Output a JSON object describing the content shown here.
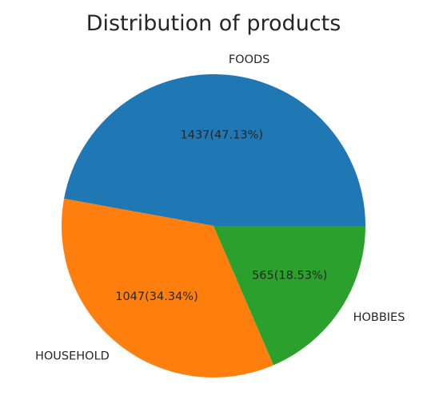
{
  "chart_data": {
    "type": "pie",
    "title": "Distribution of products",
    "categories": [
      "FOODS",
      "HOUSEHOLD",
      "HOBBIES"
    ],
    "values": [
      1437,
      1047,
      565
    ],
    "value_labels": [
      "1437(47.13%)",
      "1047(34.34%)",
      "565(18.53%)"
    ],
    "colors": [
      "#1f77b4",
      "#ff7f0e",
      "#2ca02c"
    ],
    "start_angle_deg": 0,
    "direction": "counterclockwise",
    "legend": "none"
  }
}
